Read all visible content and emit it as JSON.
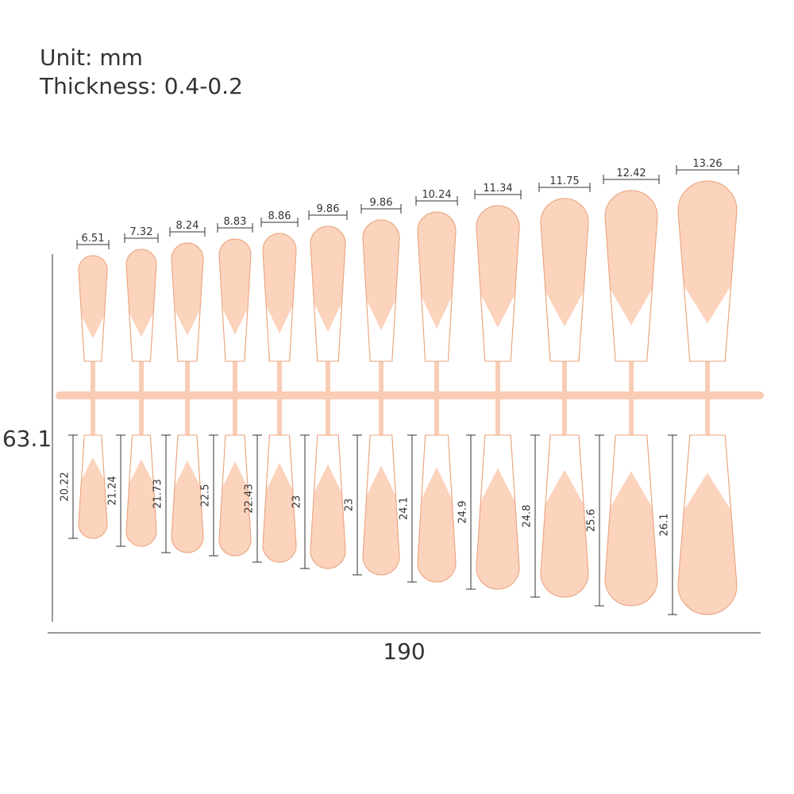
{
  "header": {
    "unit": "Unit: mm",
    "thickness": "Thickness: 0.4-0.2"
  },
  "nail_widths": [
    "6.51",
    "7.32",
    "8.24",
    "8.83",
    "8.86",
    "9.86",
    "9.86",
    "10.24",
    "11.34",
    "11.75",
    "12.42",
    "13.26"
  ],
  "nail_lengths": [
    "20.22",
    "21.24",
    "21.73",
    "22.5",
    "22.43",
    "23",
    "23",
    "24.1",
    "24.9",
    "24.8",
    "25.6",
    "26.1"
  ],
  "total_height": "63.1",
  "total_width": "190"
}
